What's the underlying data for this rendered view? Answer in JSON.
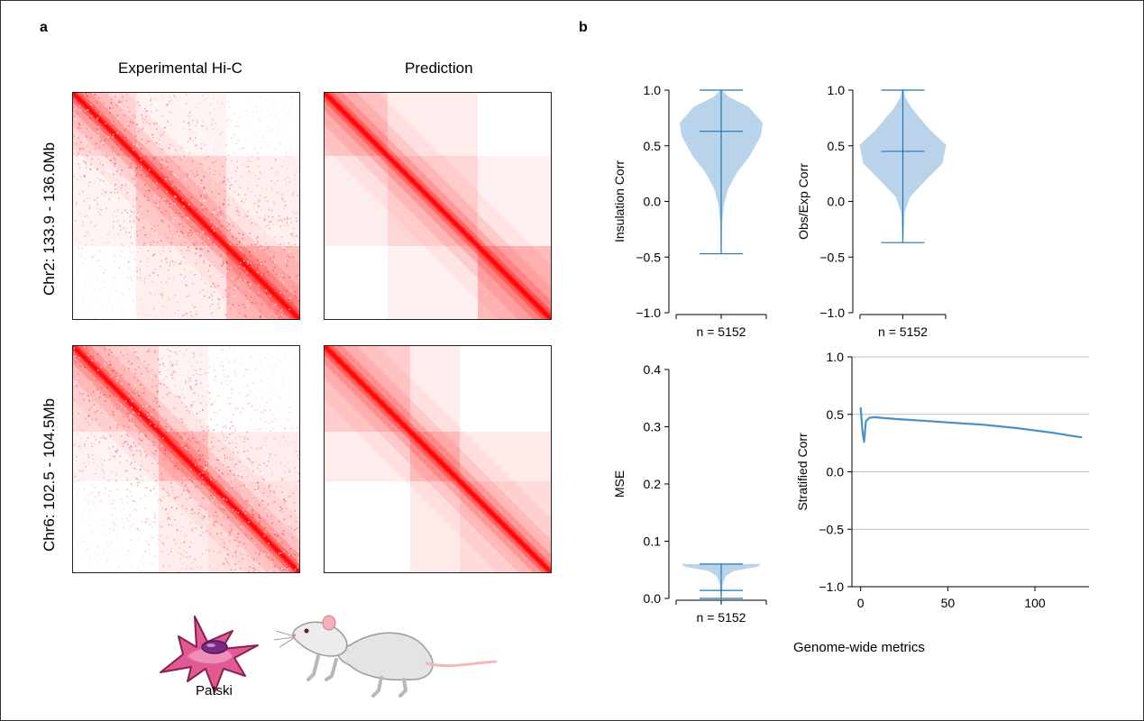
{
  "panels": {
    "a_label": "a",
    "b_label": "b"
  },
  "panel_a": {
    "col_titles": [
      "Experimental  Hi-C",
      "Prediction"
    ],
    "row_titles": [
      "Chr2: 133.9 - 136.0Mb",
      "Chr6: 102.5 - 104.5Mb"
    ],
    "colors": {
      "heatmap": "#ff1a1a",
      "diagonal": "#ff0000"
    },
    "illustration": {
      "cell_label": "Patski",
      "cell_colors": {
        "membrane": "#d9467f",
        "nucleus": "#7a2a80"
      },
      "mouse_colors": {
        "body": "#e4e4e4",
        "ear": "#f4b0b8",
        "tail": "#f2b9b9"
      }
    }
  },
  "panel_b": {
    "footer": "Genome-wide metrics"
  },
  "chart_data": [
    {
      "type": "violin",
      "ylabel": "Insulation Corr",
      "ylim": [
        -1.0,
        1.0
      ],
      "yticks": [
        -1.0,
        -0.5,
        0.0,
        0.5,
        1.0
      ],
      "ytick_labels": [
        "−1.0",
        "−0.5",
        "0.0",
        "0.5",
        "1.0"
      ],
      "xlabel": "n = 5152",
      "min": -0.47,
      "max": 1.0,
      "median": 0.63,
      "color": "#1f77b4",
      "fill": "#b9d3ea"
    },
    {
      "type": "violin",
      "ylabel": "Obs/Exp Corr",
      "ylim": [
        -1.0,
        1.0
      ],
      "yticks": [
        -1.0,
        -0.5,
        0.0,
        0.5,
        1.0
      ],
      "ytick_labels": [
        "−1.0",
        "−0.5",
        "0.0",
        "0.5",
        "1.0"
      ],
      "xlabel": "n = 5152",
      "min": -0.37,
      "max": 1.0,
      "median": 0.45,
      "color": "#1f77b4",
      "fill": "#b9d3ea"
    },
    {
      "type": "violin",
      "ylabel": "MSE",
      "ylim": [
        0.0,
        0.4
      ],
      "yticks": [
        0.0,
        0.1,
        0.2,
        0.3,
        0.4
      ],
      "ytick_labels": [
        "0.0",
        "0.1",
        "0.2",
        "0.3",
        "0.4"
      ],
      "xlabel": "n = 5152",
      "min": 0.0,
      "max": 0.06,
      "median": 0.014,
      "color": "#1f77b4",
      "fill": "#b9d3ea"
    },
    {
      "type": "line",
      "ylabel": "Stratified Corr",
      "ylim": [
        -1.0,
        1.0
      ],
      "yticks": [
        -1.0,
        -0.5,
        0.0,
        0.5,
        1.0
      ],
      "ytick_labels": [
        "−1.0",
        "−0.5",
        "0.0",
        "0.5",
        "1.0"
      ],
      "xlim": [
        -5,
        131
      ],
      "xticks": [
        0,
        50,
        100
      ],
      "xtick_labels": [
        "0",
        "50",
        "100"
      ],
      "grid": "horizontal",
      "color": "#4a90c8",
      "series": [
        {
          "x": [
            0,
            1,
            2,
            3,
            5,
            8,
            12,
            20,
            30,
            40,
            50,
            60,
            70,
            80,
            90,
            100,
            110,
            120,
            127
          ],
          "y": [
            0.56,
            0.36,
            0.26,
            0.44,
            0.47,
            0.475,
            0.47,
            0.46,
            0.45,
            0.44,
            0.43,
            0.42,
            0.41,
            0.395,
            0.38,
            0.36,
            0.34,
            0.315,
            0.3
          ]
        }
      ]
    }
  ]
}
